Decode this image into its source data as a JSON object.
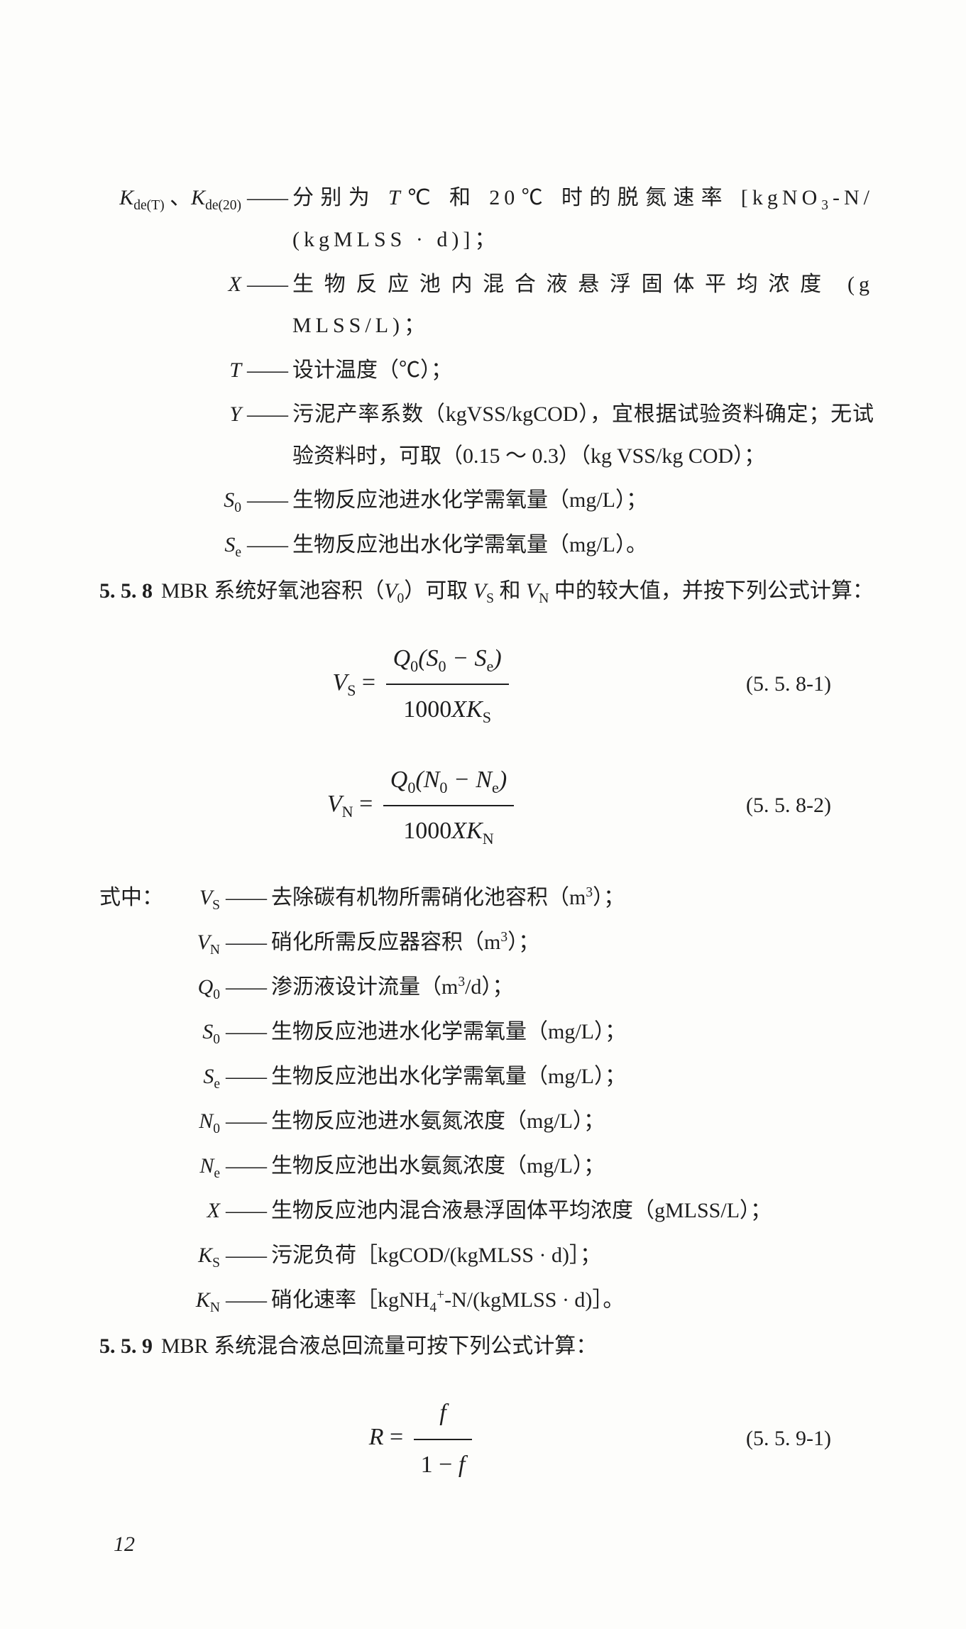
{
  "defs1": {
    "rows": [
      {
        "sym_html": "K<span class='sub'>de(T)</span> <span class='upright'>、</span>K<span class='sub'>de(20)</span>",
        "sym_w": 200,
        "txt": "分别为 <span style='font-family:Times New Roman;font-style:italic'>T</span>℃ 和 20℃ 时的脱氮速率 [kgNO<span class='sub'>3</span>-N/ (kgMLSS · d)]；",
        "spread": true
      },
      {
        "sym_html": "X",
        "sym_w": 200,
        "txt": "生物反应池内混合液悬浮固体平均浓度 (g MLSS/L)；",
        "spread": true
      },
      {
        "sym_html": "T",
        "sym_w": 200,
        "txt": "设计温度（℃）；"
      },
      {
        "sym_html": "Y",
        "sym_w": 200,
        "txt": "污泥产率系数（kgVSS/kgCOD），宜根据试验资料确定；无试验资料时，可取（0.15 ～ 0.3）（kg VSS/kg COD）；"
      },
      {
        "sym_html": "S<span class='sub'>0</span>",
        "sym_w": 200,
        "txt": "生物反应池进水化学需氧量（mg/L）；"
      },
      {
        "sym_html": "S<span class='sub'>e</span>",
        "sym_w": 200,
        "txt": "生物反应池出水化学需氧量（mg/L）。"
      }
    ]
  },
  "section558": {
    "num": "5. 5. 8",
    "text": "MBR 系统好氧池容积（<span style='font-family:Times New Roman;font-style:italic'>V</span><span class='sub'>0</span>）可取 <span style='font-family:Times New Roman;font-style:italic'>V</span><span class='sub'>S</span> 和 <span style='font-family:Times New Roman;font-style:italic'>V</span><span class='sub'>N</span> 中的较大值，并按下列公式计算："
  },
  "eq1": {
    "lhs": "V<span class='sub upright'>S</span>",
    "num": "Q<span class='sub upright'>0</span>(S<span class='sub upright'>0</span> − S<span class='sub upright'>e</span>)",
    "den": "<span class='upright'>1000</span>XK<span class='sub upright'>S</span>",
    "label": "(5. 5. 8-1)"
  },
  "eq2": {
    "lhs": "V<span class='sub upright'>N</span>",
    "num": "Q<span class='sub upright'>0</span>(N<span class='sub upright'>0</span> − N<span class='sub upright'>e</span>)",
    "den": "<span class='upright'>1000</span>XK<span class='sub upright'>N</span>",
    "label": "(5. 5. 8-2)"
  },
  "shizhong": "式中：",
  "defs2": {
    "rows": [
      {
        "sym_html": "V<span class='sub'>S</span>",
        "sym_w": 70,
        "txt": "去除碳有机物所需硝化池容积（m<span class='sup'>3</span>）；"
      },
      {
        "sym_html": "V<span class='sub'>N</span>",
        "sym_w": 70,
        "txt": "硝化所需反应器容积（m<span class='sup'>3</span>）；"
      },
      {
        "sym_html": "Q<span class='sub'>0</span>",
        "sym_w": 70,
        "txt": "渗沥液设计流量（m<span class='sup'>3</span>/d）；"
      },
      {
        "sym_html": "S<span class='sub'>0</span>",
        "sym_w": 70,
        "txt": "生物反应池进水化学需氧量（mg/L）；"
      },
      {
        "sym_html": "S<span class='sub'>e</span>",
        "sym_w": 70,
        "txt": "生物反应池出水化学需氧量（mg/L）；"
      },
      {
        "sym_html": "N<span class='sub'>0</span>",
        "sym_w": 70,
        "txt": "生物反应池进水氨氮浓度（mg/L）；"
      },
      {
        "sym_html": "N<span class='sub'>e</span>",
        "sym_w": 70,
        "txt": "生物反应池出水氨氮浓度（mg/L）；"
      },
      {
        "sym_html": "X",
        "sym_w": 70,
        "txt": "生物反应池内混合液悬浮固体平均浓度（gMLSS/L）；"
      },
      {
        "sym_html": "K<span class='sub'>S</span>",
        "sym_w": 70,
        "txt": "污泥负荷［kgCOD/(kgMLSS · d)］；"
      },
      {
        "sym_html": "K<span class='sub'>N</span>",
        "sym_w": 70,
        "txt": "硝化速率［kgNH<span class='sub'>4</span><span class='sup'>+</span>-N/(kgMLSS · d)］。"
      }
    ]
  },
  "section559": {
    "num": "5. 5. 9",
    "text": "MBR 系统混合液总回流量可按下列公式计算："
  },
  "eq3": {
    "lhs": "R",
    "num": "f",
    "den": "<span class='upright'>1 − </span>f",
    "label": "(5. 5. 9-1)"
  },
  "pagenum": "12"
}
